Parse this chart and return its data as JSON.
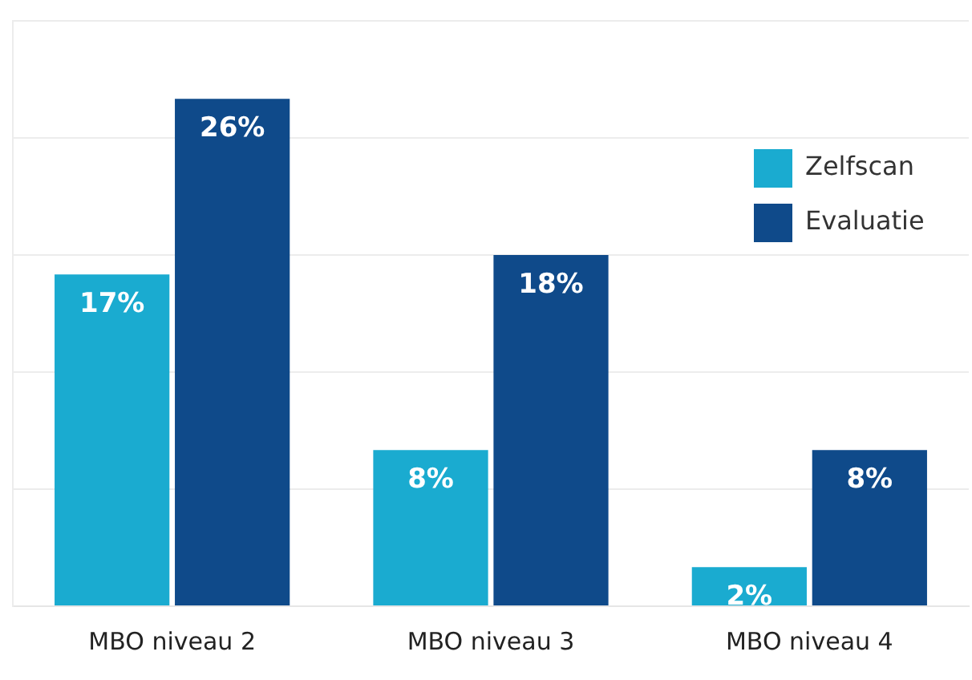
{
  "chart_data": {
    "type": "bar",
    "categories": [
      "MBO niveau 2",
      "MBO niveau 3",
      "MBO niveau 4"
    ],
    "series": [
      {
        "name": "Zelfscan",
        "color": "#1aabd0",
        "values": [
          17,
          8,
          2
        ],
        "value_labels": [
          "17%",
          "8%",
          "2%"
        ]
      },
      {
        "name": "Evaluatie",
        "color": "#0f4a8a",
        "values": [
          26,
          18,
          8
        ],
        "value_labels": [
          "26%",
          "18%",
          "8%"
        ]
      }
    ],
    "ylim": [
      0,
      30
    ],
    "yticks": [
      {
        "value": 0,
        "label": null
      },
      {
        "value": 6,
        "label": null
      },
      {
        "value": 12,
        "label": null
      },
      {
        "value": 18,
        "label": null
      },
      {
        "value": 24,
        "label": null
      },
      {
        "value": 30,
        "label": null
      }
    ],
    "tick_labels": "x",
    "grid": "y",
    "legend": "top right"
  }
}
